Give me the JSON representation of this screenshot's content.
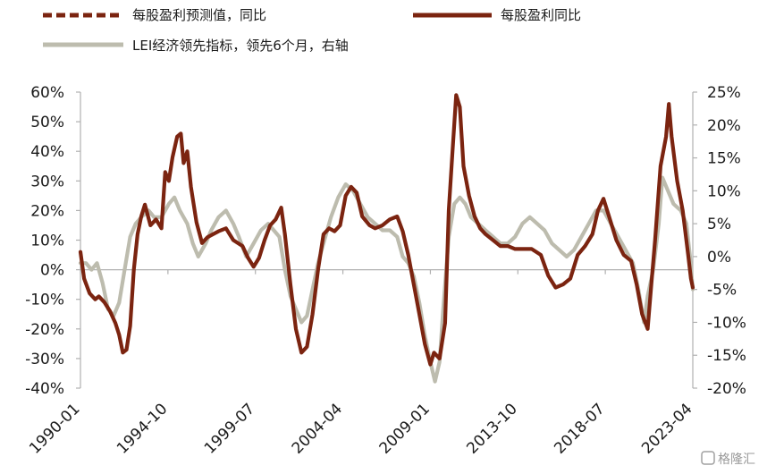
{
  "chart_data": {
    "type": "line",
    "legend": [
      {
        "label": "每股盈利预测值，同比",
        "style": "dashed",
        "color": "#7b2410"
      },
      {
        "label": "每股盈利同比",
        "style": "solid",
        "color": "#7b2410"
      },
      {
        "label": "LEI经济领先指标，领先6个月，右轴",
        "style": "solid",
        "color": "#bdbcae"
      }
    ],
    "legend_position": "top",
    "grid": false,
    "y_left": {
      "ticks": [
        -40,
        -30,
        -20,
        -10,
        0,
        10,
        20,
        30,
        40,
        50,
        60
      ],
      "tick_labels": [
        "-40%",
        "-30%",
        "-20%",
        "-10%",
        "0%",
        "10%",
        "20%",
        "30%",
        "40%",
        "50%",
        "60%"
      ],
      "range": [
        -40,
        60
      ]
    },
    "y_right": {
      "ticks": [
        -20,
        -15,
        -10,
        -5,
        0,
        5,
        10,
        15,
        20,
        25
      ],
      "tick_labels": [
        "-20%",
        "-15%",
        "-10%",
        "-5%",
        "0%",
        "5%",
        "10%",
        "15%",
        "20%",
        "25%"
      ],
      "range": [
        -20,
        25
      ]
    },
    "x_range": [
      1990.0,
      2023.25
    ],
    "x_ticks": [
      1990.0,
      1994.75,
      1999.5,
      2004.25,
      2009.0,
      2013.75,
      2018.5,
      2023.25
    ],
    "x_tick_labels": [
      "1990-01",
      "1994-10",
      "1999-07",
      "2004-04",
      "2009-01",
      "2013-10",
      "2018-07",
      "2023-04"
    ],
    "series": [
      {
        "name": "每股盈利同比",
        "axis": "left",
        "color": "#7b2410",
        "points": [
          [
            1990.0,
            6
          ],
          [
            1990.2,
            -3
          ],
          [
            1990.5,
            -8
          ],
          [
            1990.8,
            -10
          ],
          [
            1991.0,
            -9
          ],
          [
            1991.3,
            -11
          ],
          [
            1991.6,
            -14
          ],
          [
            1991.9,
            -18
          ],
          [
            1992.1,
            -22
          ],
          [
            1992.3,
            -28
          ],
          [
            1992.5,
            -27
          ],
          [
            1992.7,
            -19
          ],
          [
            1992.9,
            0
          ],
          [
            1993.1,
            12
          ],
          [
            1993.3,
            18
          ],
          [
            1993.5,
            22
          ],
          [
            1993.8,
            15
          ],
          [
            1994.1,
            17
          ],
          [
            1994.4,
            14
          ],
          [
            1994.6,
            33
          ],
          [
            1994.8,
            30
          ],
          [
            1995.0,
            38
          ],
          [
            1995.25,
            45
          ],
          [
            1995.45,
            46
          ],
          [
            1995.6,
            36
          ],
          [
            1995.8,
            40
          ],
          [
            1996.0,
            28
          ],
          [
            1996.3,
            16
          ],
          [
            1996.6,
            9
          ],
          [
            1996.9,
            11
          ],
          [
            1997.2,
            12
          ],
          [
            1997.5,
            13
          ],
          [
            1997.9,
            14
          ],
          [
            1998.3,
            10
          ],
          [
            1998.8,
            8
          ],
          [
            1999.1,
            4
          ],
          [
            1999.4,
            1
          ],
          [
            1999.7,
            4
          ],
          [
            2000.0,
            10
          ],
          [
            2000.3,
            15
          ],
          [
            2000.6,
            17
          ],
          [
            2000.9,
            21
          ],
          [
            2001.1,
            12
          ],
          [
            2001.4,
            -5
          ],
          [
            2001.7,
            -20
          ],
          [
            2002.0,
            -28
          ],
          [
            2002.3,
            -26
          ],
          [
            2002.6,
            -15
          ],
          [
            2002.9,
            0
          ],
          [
            2003.2,
            12
          ],
          [
            2003.5,
            14
          ],
          [
            2003.8,
            13
          ],
          [
            2004.1,
            15
          ],
          [
            2004.4,
            25
          ],
          [
            2004.7,
            28
          ],
          [
            2005.0,
            26
          ],
          [
            2005.3,
            18
          ],
          [
            2005.7,
            15
          ],
          [
            2006.0,
            14
          ],
          [
            2006.4,
            15
          ],
          [
            2006.8,
            17
          ],
          [
            2007.2,
            18
          ],
          [
            2007.5,
            13
          ],
          [
            2007.8,
            5
          ],
          [
            2008.1,
            -5
          ],
          [
            2008.4,
            -15
          ],
          [
            2008.7,
            -25
          ],
          [
            2009.0,
            -32
          ],
          [
            2009.2,
            -28
          ],
          [
            2009.5,
            -30
          ],
          [
            2009.8,
            -18
          ],
          [
            2010.0,
            20
          ],
          [
            2010.2,
            40
          ],
          [
            2010.4,
            59
          ],
          [
            2010.6,
            55
          ],
          [
            2010.8,
            35
          ],
          [
            2011.1,
            25
          ],
          [
            2011.4,
            18
          ],
          [
            2011.7,
            14
          ],
          [
            2012.0,
            12
          ],
          [
            2012.4,
            10
          ],
          [
            2012.8,
            8
          ],
          [
            2013.2,
            8
          ],
          [
            2013.6,
            7
          ],
          [
            2014.0,
            7
          ],
          [
            2014.5,
            7
          ],
          [
            2015.0,
            5
          ],
          [
            2015.4,
            -2
          ],
          [
            2015.8,
            -6
          ],
          [
            2016.2,
            -5
          ],
          [
            2016.6,
            -3
          ],
          [
            2017.0,
            5
          ],
          [
            2017.4,
            8
          ],
          [
            2017.8,
            12
          ],
          [
            2018.1,
            20
          ],
          [
            2018.4,
            24
          ],
          [
            2018.7,
            18
          ],
          [
            2019.1,
            10
          ],
          [
            2019.5,
            5
          ],
          [
            2019.9,
            3
          ],
          [
            2020.2,
            -5
          ],
          [
            2020.5,
            -15
          ],
          [
            2020.8,
            -20
          ],
          [
            2021.0,
            -5
          ],
          [
            2021.2,
            10
          ],
          [
            2021.5,
            35
          ],
          [
            2021.8,
            45
          ],
          [
            2021.95,
            56
          ],
          [
            2022.1,
            45
          ],
          [
            2022.4,
            30
          ],
          [
            2022.7,
            20
          ],
          [
            2023.0,
            5
          ],
          [
            2023.15,
            -3
          ],
          [
            2023.25,
            -6
          ]
        ]
      },
      {
        "name": "LEI经济领先指标，领先6个月，右轴",
        "axis": "right",
        "color": "#bdbcae",
        "points": [
          [
            1990.0,
            -1
          ],
          [
            1990.3,
            -1
          ],
          [
            1990.6,
            -2
          ],
          [
            1990.9,
            -1
          ],
          [
            1991.2,
            -4
          ],
          [
            1991.5,
            -8
          ],
          [
            1991.8,
            -9
          ],
          [
            1992.1,
            -7
          ],
          [
            1992.4,
            -2
          ],
          [
            1992.7,
            3
          ],
          [
            1993.0,
            5
          ],
          [
            1993.3,
            6
          ],
          [
            1993.7,
            7
          ],
          [
            1994.0,
            6
          ],
          [
            1994.4,
            6
          ],
          [
            1994.8,
            8
          ],
          [
            1995.1,
            9
          ],
          [
            1995.4,
            7
          ],
          [
            1995.8,
            5
          ],
          [
            1996.1,
            2
          ],
          [
            1996.4,
            0
          ],
          [
            1996.8,
            2
          ],
          [
            1997.1,
            4
          ],
          [
            1997.5,
            6
          ],
          [
            1997.9,
            7
          ],
          [
            1998.3,
            5
          ],
          [
            1998.6,
            3
          ],
          [
            1999.0,
            0
          ],
          [
            1999.4,
            2
          ],
          [
            1999.8,
            4
          ],
          [
            2000.2,
            5
          ],
          [
            2000.5,
            4
          ],
          [
            2000.8,
            3
          ],
          [
            2001.1,
            -2
          ],
          [
            2001.4,
            -6
          ],
          [
            2001.7,
            -8
          ],
          [
            2002.0,
            -10
          ],
          [
            2002.3,
            -9
          ],
          [
            2002.6,
            -5
          ],
          [
            2002.9,
            -1
          ],
          [
            2003.2,
            2
          ],
          [
            2003.6,
            6
          ],
          [
            2004.0,
            9
          ],
          [
            2004.4,
            11
          ],
          [
            2004.8,
            10
          ],
          [
            2005.2,
            8
          ],
          [
            2005.6,
            6
          ],
          [
            2006.0,
            5
          ],
          [
            2006.4,
            4
          ],
          [
            2006.8,
            4
          ],
          [
            2007.2,
            3
          ],
          [
            2007.5,
            0
          ],
          [
            2007.8,
            -1
          ],
          [
            2008.1,
            -3
          ],
          [
            2008.4,
            -7
          ],
          [
            2008.7,
            -12
          ],
          [
            2009.0,
            -16
          ],
          [
            2009.25,
            -19
          ],
          [
            2009.5,
            -16
          ],
          [
            2009.7,
            -8
          ],
          [
            2010.0,
            3
          ],
          [
            2010.3,
            8
          ],
          [
            2010.6,
            9
          ],
          [
            2010.9,
            8
          ],
          [
            2011.2,
            6
          ],
          [
            2011.6,
            5
          ],
          [
            2012.0,
            4
          ],
          [
            2012.4,
            3
          ],
          [
            2012.8,
            2
          ],
          [
            2013.2,
            2
          ],
          [
            2013.6,
            3
          ],
          [
            2014.0,
            5
          ],
          [
            2014.4,
            6
          ],
          [
            2014.8,
            5
          ],
          [
            2015.2,
            4
          ],
          [
            2015.6,
            2
          ],
          [
            2016.0,
            1
          ],
          [
            2016.4,
            0
          ],
          [
            2016.8,
            1
          ],
          [
            2017.2,
            3
          ],
          [
            2017.6,
            5
          ],
          [
            2018.0,
            7
          ],
          [
            2018.4,
            7
          ],
          [
            2018.8,
            5
          ],
          [
            2019.2,
            3
          ],
          [
            2019.6,
            1
          ],
          [
            2020.0,
            -1
          ],
          [
            2020.3,
            -5
          ],
          [
            2020.6,
            -10
          ],
          [
            2020.8,
            -6
          ],
          [
            2021.1,
            -2
          ],
          [
            2021.4,
            5
          ],
          [
            2021.6,
            12
          ],
          [
            2021.9,
            10
          ],
          [
            2022.2,
            8
          ],
          [
            2022.6,
            7
          ],
          [
            2022.9,
            5
          ],
          [
            2023.1,
            0
          ],
          [
            2023.25,
            -5
          ]
        ]
      },
      {
        "name": "每股盈利预测值，同比",
        "axis": "left",
        "color": "#7b2410",
        "points": []
      }
    ]
  },
  "watermark": "格隆汇"
}
